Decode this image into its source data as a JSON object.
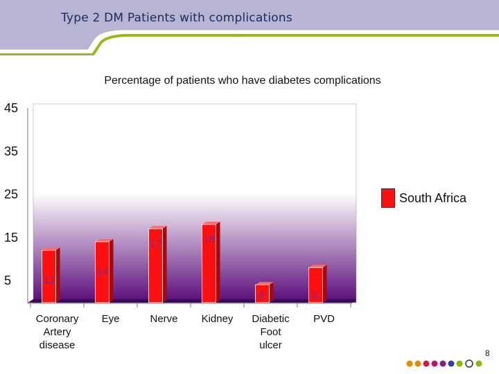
{
  "slide": {
    "title": "Type 2 DM Patients with complications",
    "page_number": "8"
  },
  "chart_data": {
    "type": "bar",
    "title": "Percentage of patients who have diabetes complications",
    "categories": [
      [
        "Coronary",
        "Artery",
        "disease"
      ],
      [
        "Eye"
      ],
      [
        "Nerve"
      ],
      [
        "Kidney"
      ],
      [
        "Diabetic",
        "Foot",
        "ulcer"
      ],
      [
        "PVD"
      ]
    ],
    "series": [
      {
        "name": "South Africa",
        "values": [
          12,
          14,
          17,
          18,
          4,
          8
        ]
      }
    ],
    "y_ticks": [
      "5",
      "15",
      "25",
      "35",
      "45"
    ],
    "ylim": [
      0,
      45
    ],
    "legend_position": "right",
    "grid": false
  },
  "colors": {
    "bar": "#ff1010",
    "plot_background_top": "#ffffff",
    "plot_background_bottom": "#5a0a7a",
    "header_bar": "#b8b4d4",
    "accent_line": "#9ab818",
    "data_label": "#7b2a8a"
  },
  "footer_dots": [
    "#e58a00",
    "#e58a00",
    "#d4173c",
    "#c0106a",
    "#8a1a8a",
    "#3a3aa8",
    "#8ab800"
  ]
}
